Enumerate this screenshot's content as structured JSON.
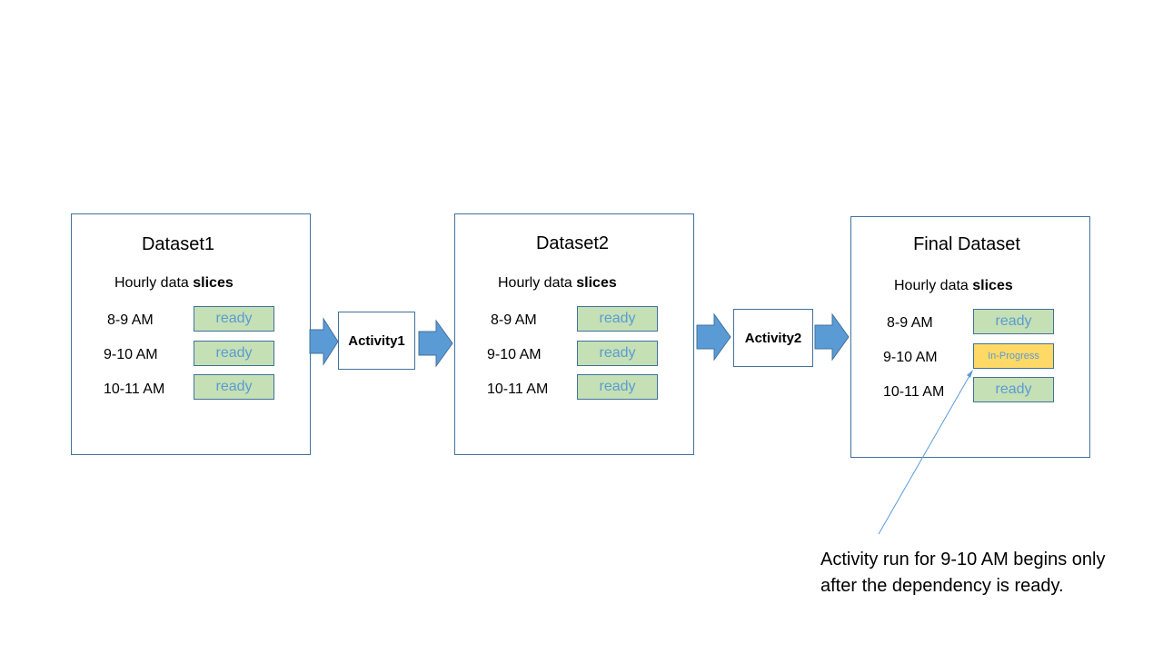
{
  "datasets": [
    {
      "title": "Dataset1",
      "subtitle_prefix": "Hourly data ",
      "subtitle_bold": "slices",
      "slices": [
        {
          "label": "8-9 AM",
          "status": "ready"
        },
        {
          "label": "9-10 AM",
          "status": "ready"
        },
        {
          "label": "10-11 AM",
          "status": "ready"
        }
      ]
    },
    {
      "title": "Dataset2",
      "subtitle_prefix": "Hourly data ",
      "subtitle_bold": "slices",
      "slices": [
        {
          "label": "8-9 AM",
          "status": "ready"
        },
        {
          "label": "9-10 AM",
          "status": "ready"
        },
        {
          "label": "10-11 AM",
          "status": "ready"
        }
      ]
    },
    {
      "title": "Final Dataset",
      "subtitle_prefix": "Hourly data ",
      "subtitle_bold": "slices",
      "slices": [
        {
          "label": "8-9 AM",
          "status": "ready"
        },
        {
          "label": "9-10 AM",
          "status": "In-Progress"
        },
        {
          "label": "10-11 AM",
          "status": "ready"
        }
      ]
    }
  ],
  "activities": [
    {
      "label": "Activity1"
    },
    {
      "label": "Activity2"
    }
  ],
  "note": "Activity run for 9-10 AM begins only after the dependency is ready.",
  "colors": {
    "border": "#41719c",
    "arrow": "#5b9bd5",
    "ready_fill": "#c5e0b4",
    "progress_fill": "#ffd966",
    "status_text": "#5b9bd5"
  }
}
